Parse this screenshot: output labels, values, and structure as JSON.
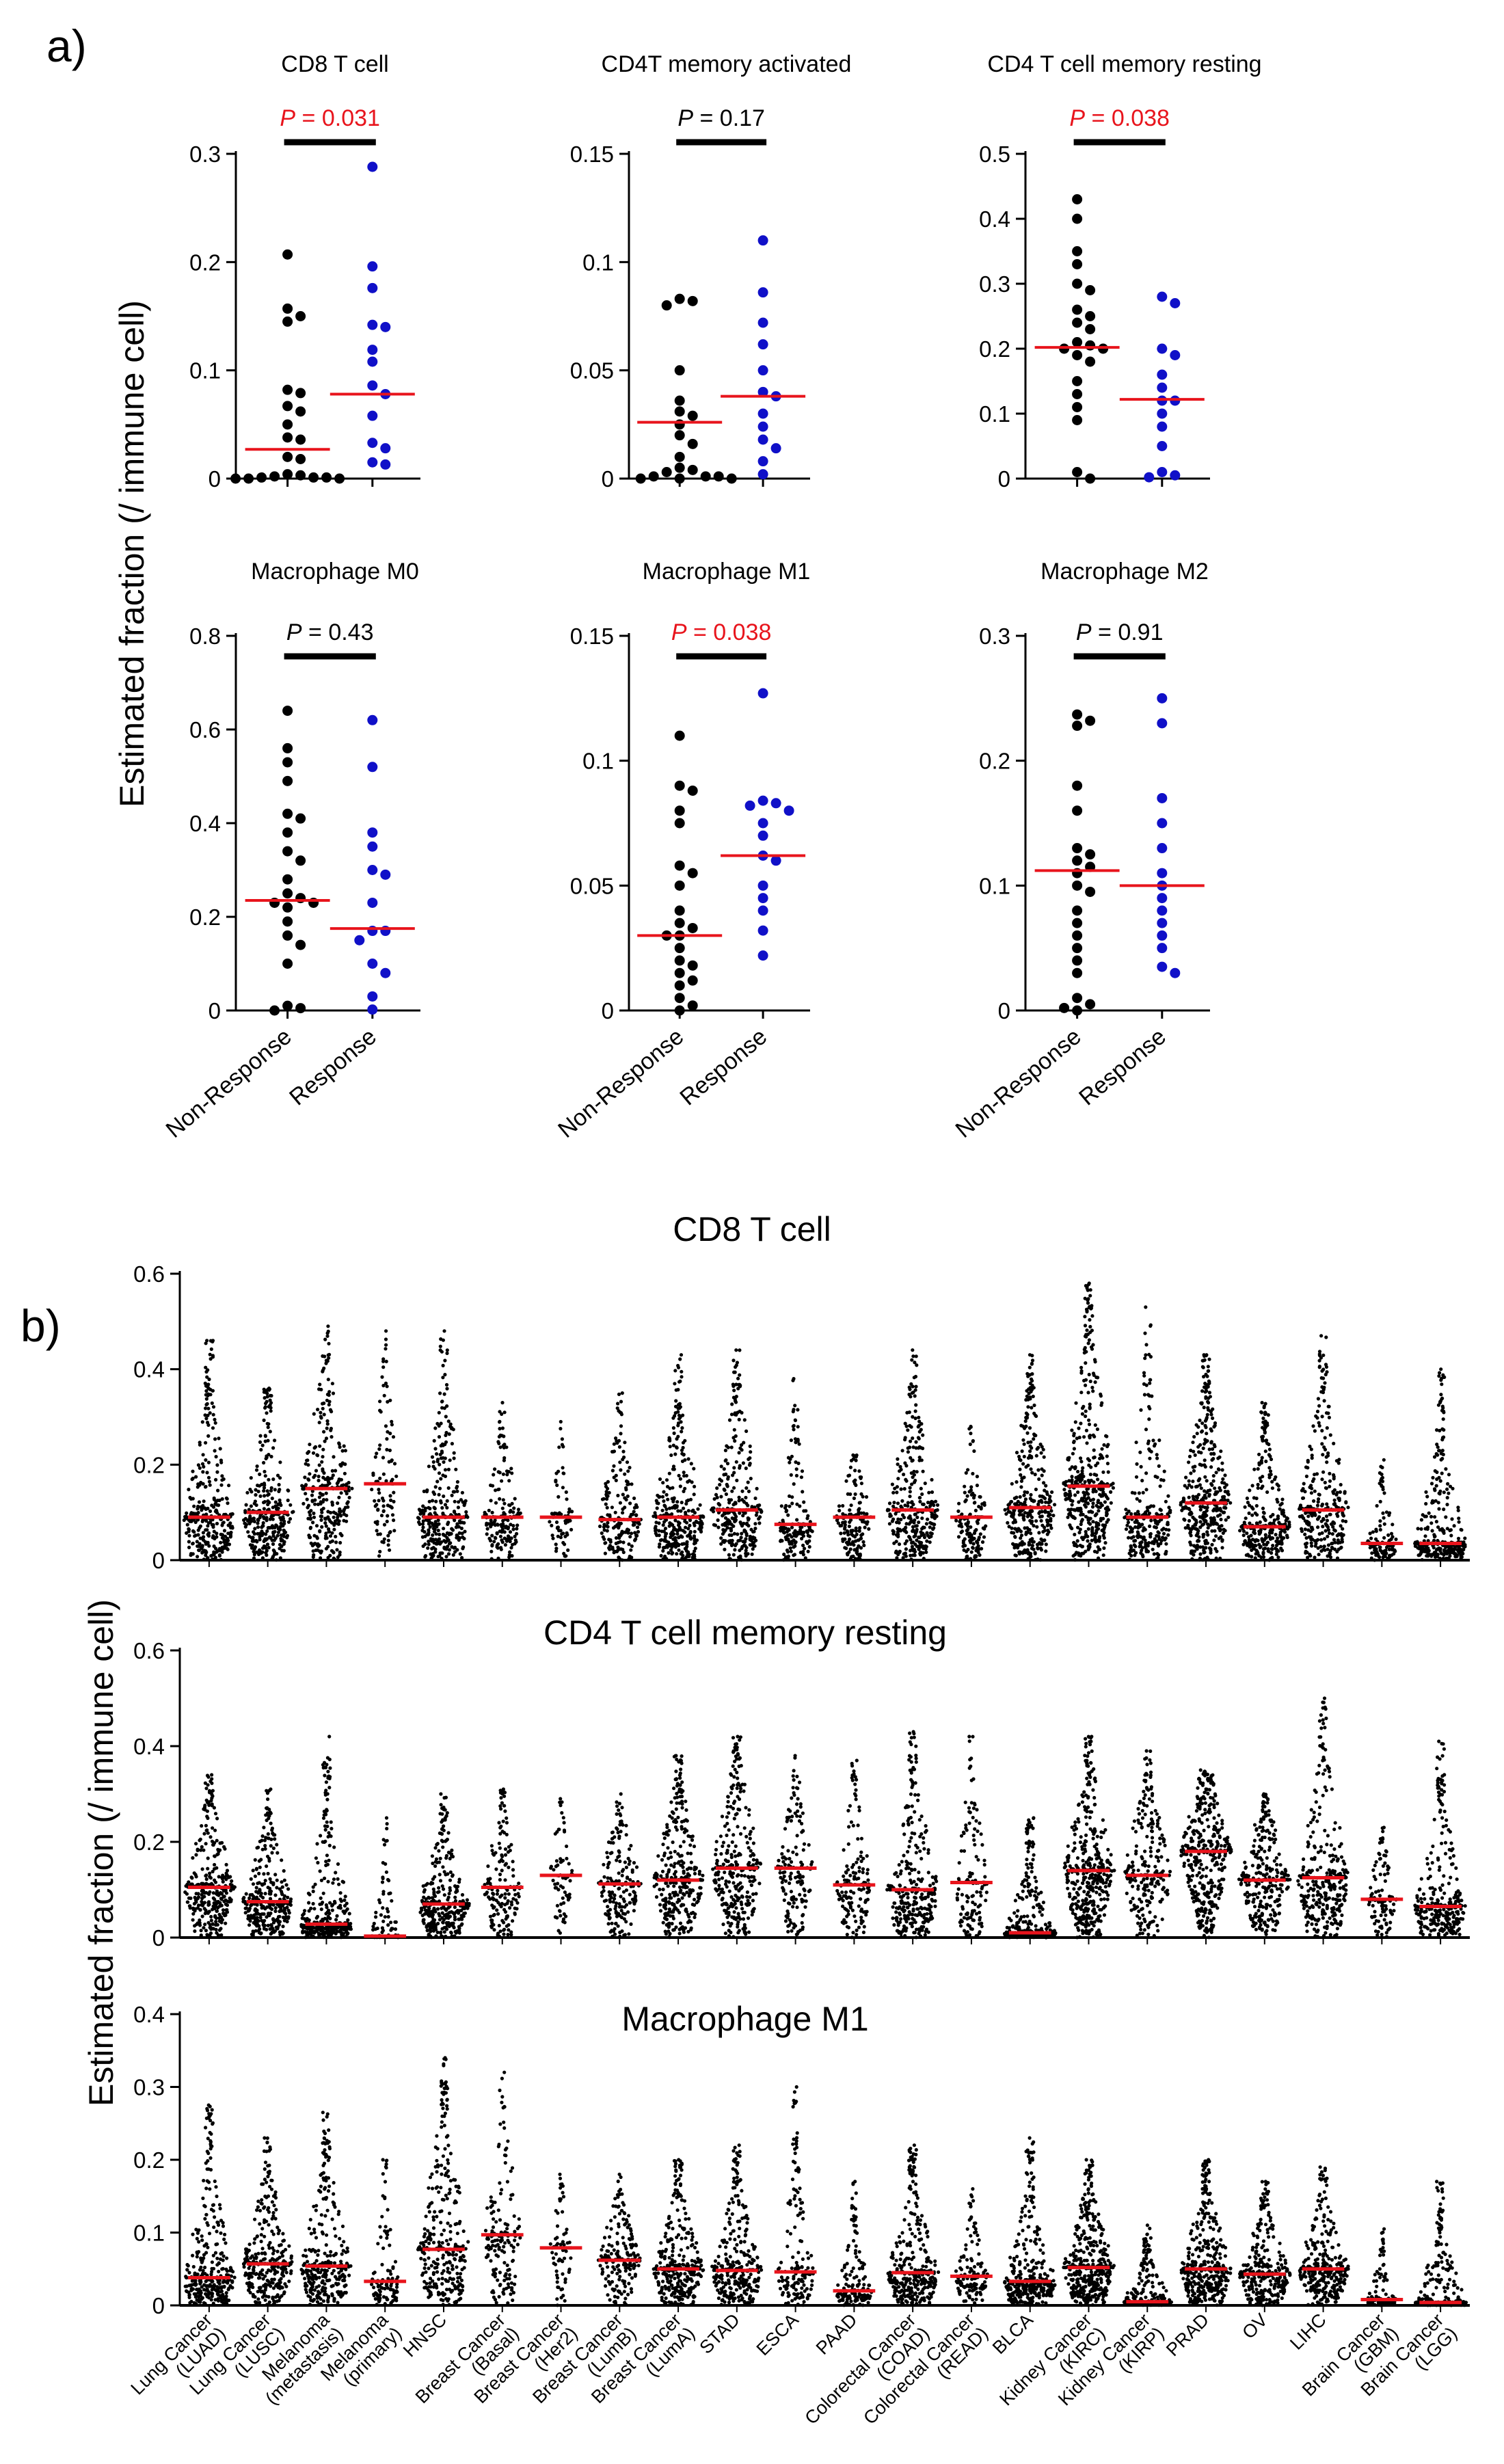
{
  "panel_a": {
    "label": "a)",
    "ylabel": "Estimated fraction (/ immune cell)",
    "group_labels": [
      "Non-Response",
      "Response"
    ],
    "colors": {
      "non_response": "#000000",
      "response": "#1010c8",
      "median": "#e8141c",
      "significant": "#e8141c",
      "not_significant": "#000000"
    }
  },
  "panel_b": {
    "label": "b)",
    "ylabel": "Estimated fraction (/ immune cell)",
    "categories": [
      [
        "Lung Cancer",
        "(LUAD)"
      ],
      [
        "Lung Cancer",
        "(LUSC)"
      ],
      [
        "Melanoma",
        "(metastasis)"
      ],
      [
        "Melanoma",
        "(primary)"
      ],
      [
        "HNSC"
      ],
      [
        "Breast Cancer",
        "(Basal)"
      ],
      [
        "Breast Cancer",
        "(Her2)"
      ],
      [
        "Breast Cancer",
        "(LumB)"
      ],
      [
        "Breast Cancer",
        "(LumA)"
      ],
      [
        "STAD"
      ],
      [
        "ESCA"
      ],
      [
        "PAAD"
      ],
      [
        "Colorectal Cancer",
        "(COAD)"
      ],
      [
        "Colorectal Cancer",
        "(READ)"
      ],
      [
        "BLCA"
      ],
      [
        "Kidney Cancer",
        "(KIRC)"
      ],
      [
        "Kidney Cancer",
        "(KIRP)"
      ],
      [
        "PRAD"
      ],
      [
        "OV"
      ],
      [
        "LIHC"
      ],
      [
        "Brain Cancer",
        "(GBM)"
      ],
      [
        "Brain Cancer",
        "(LGG)"
      ]
    ],
    "colors": {
      "dots": "#000000",
      "median": "#e8141c"
    }
  },
  "chart_data": [
    {
      "type": "scatter",
      "title": "CD8 T cell",
      "ylim": [
        0,
        0.3
      ],
      "yticks": [
        0,
        0.1,
        0.2,
        0.3
      ],
      "ytick_labels": [
        "0",
        "0.1",
        "0.2",
        "0.3"
      ],
      "groups": [
        "Non-Response",
        "Response"
      ],
      "non_response": [
        0.207,
        0.157,
        0.15,
        0.145,
        0.082,
        0.079,
        0.067,
        0.062,
        0.05,
        0.038,
        0.036,
        0.02,
        0.018,
        0.004,
        0.003,
        0.002,
        0.001,
        0.001,
        0.001,
        0,
        0,
        0
      ],
      "response": [
        0.288,
        0.196,
        0.176,
        0.142,
        0.14,
        0.119,
        0.108,
        0.086,
        0.078,
        0.058,
        0.033,
        0.028,
        0.015,
        0.013
      ],
      "medians": [
        0.027,
        0.078
      ],
      "p_label": "P",
      "p_value": "= 0.031",
      "significant": true
    },
    {
      "type": "scatter",
      "title": "CD4T memory activated",
      "ylim": [
        0,
        0.15
      ],
      "yticks": [
        0,
        0.05,
        0.1,
        0.15
      ],
      "ytick_labels": [
        "0",
        "0.05",
        "0.1",
        "0.15"
      ],
      "groups": [
        "Non-Response",
        "Response"
      ],
      "non_response": [
        0.083,
        0.082,
        0.08,
        0.05,
        0.036,
        0.031,
        0.029,
        0.025,
        0.02,
        0.016,
        0.01,
        0.005,
        0.004,
        0.003,
        0.001,
        0.001,
        0.001,
        0,
        0,
        0
      ],
      "response": [
        0.11,
        0.086,
        0.072,
        0.062,
        0.05,
        0.04,
        0.038,
        0.03,
        0.024,
        0.018,
        0.014,
        0.008,
        0.002
      ],
      "medians": [
        0.026,
        0.038
      ],
      "p_label": "P",
      "p_value": "= 0.17",
      "significant": false
    },
    {
      "type": "scatter",
      "title": "CD4 T cell memory resting",
      "ylim": [
        0,
        0.5
      ],
      "yticks": [
        0,
        0.1,
        0.2,
        0.3,
        0.4,
        0.5
      ],
      "ytick_labels": [
        "0",
        "0.1",
        "0.2",
        "0.3",
        "0.4",
        "0.5"
      ],
      "groups": [
        "Non-Response",
        "Response"
      ],
      "non_response": [
        0.43,
        0.4,
        0.35,
        0.33,
        0.3,
        0.29,
        0.26,
        0.25,
        0.24,
        0.23,
        0.21,
        0.205,
        0.2,
        0.2,
        0.19,
        0.18,
        0.15,
        0.13,
        0.11,
        0.09,
        0.01,
        0
      ],
      "response": [
        0.28,
        0.27,
        0.2,
        0.19,
        0.16,
        0.14,
        0.12,
        0.12,
        0.1,
        0.08,
        0.05,
        0.01,
        0.005,
        0.002
      ],
      "medians": [
        0.202,
        0.122
      ],
      "p_label": "P",
      "p_value": "= 0.038",
      "significant": true
    },
    {
      "type": "scatter",
      "title": "Macrophage M0",
      "ylim": [
        0,
        0.8
      ],
      "yticks": [
        0,
        0.2,
        0.4,
        0.6,
        0.8
      ],
      "ytick_labels": [
        "0",
        "0.2",
        "0.4",
        "0.6",
        "0.8"
      ],
      "groups": [
        "Non-Response",
        "Response"
      ],
      "non_response": [
        0.64,
        0.56,
        0.53,
        0.49,
        0.42,
        0.41,
        0.38,
        0.34,
        0.32,
        0.28,
        0.25,
        0.24,
        0.23,
        0.23,
        0.22,
        0.19,
        0.16,
        0.14,
        0.1,
        0.01,
        0.005,
        0
      ],
      "response": [
        0.62,
        0.52,
        0.38,
        0.35,
        0.3,
        0.29,
        0.23,
        0.17,
        0.17,
        0.15,
        0.1,
        0.08,
        0.03,
        0.002
      ],
      "medians": [
        0.235,
        0.175
      ],
      "p_label": "P",
      "p_value": "= 0.43",
      "significant": false
    },
    {
      "type": "scatter",
      "title": "Macrophage M1",
      "ylim": [
        0,
        0.15
      ],
      "yticks": [
        0,
        0.05,
        0.1,
        0.15
      ],
      "ytick_labels": [
        "0",
        "0.05",
        "0.1",
        "0.15"
      ],
      "groups": [
        "Non-Response",
        "Response"
      ],
      "non_response": [
        0.11,
        0.09,
        0.088,
        0.08,
        0.075,
        0.058,
        0.055,
        0.05,
        0.04,
        0.035,
        0.033,
        0.03,
        0.03,
        0.025,
        0.02,
        0.018,
        0.015,
        0.012,
        0.01,
        0.005,
        0.002,
        0
      ],
      "response": [
        0.127,
        0.084,
        0.083,
        0.082,
        0.08,
        0.075,
        0.07,
        0.062,
        0.06,
        0.05,
        0.045,
        0.04,
        0.032,
        0.022
      ],
      "medians": [
        0.03,
        0.062
      ],
      "p_label": "P",
      "p_value": "= 0.038",
      "significant": true
    },
    {
      "type": "scatter",
      "title": "Macrophage M2",
      "ylim": [
        0,
        0.3
      ],
      "yticks": [
        0,
        0.1,
        0.2,
        0.3
      ],
      "ytick_labels": [
        "0",
        "0.1",
        "0.2",
        "0.3"
      ],
      "groups": [
        "Non-Response",
        "Response"
      ],
      "non_response": [
        0.237,
        0.232,
        0.228,
        0.18,
        0.16,
        0.13,
        0.125,
        0.12,
        0.115,
        0.11,
        0.1,
        0.095,
        0.08,
        0.07,
        0.06,
        0.05,
        0.04,
        0.03,
        0.01,
        0.005,
        0.002,
        0
      ],
      "response": [
        0.25,
        0.23,
        0.17,
        0.15,
        0.13,
        0.11,
        0.1,
        0.09,
        0.08,
        0.07,
        0.06,
        0.05,
        0.035,
        0.03
      ],
      "medians": [
        0.112,
        0.1
      ],
      "p_label": "P",
      "p_value": "= 0.91",
      "significant": false
    },
    {
      "type": "scatter",
      "title": "CD8 T cell",
      "ylim": [
        0,
        0.6
      ],
      "yticks": [
        0,
        0.2,
        0.4,
        0.6
      ],
      "ytick_labels": [
        "0",
        "0.2",
        "0.4",
        "0.6"
      ],
      "medians": [
        0.09,
        0.1,
        0.15,
        0.16,
        0.09,
        0.09,
        0.09,
        0.085,
        0.09,
        0.105,
        0.075,
        0.09,
        0.105,
        0.09,
        0.11,
        0.155,
        0.09,
        0.12,
        0.07,
        0.105,
        0.035,
        0.035
      ],
      "maxima": [
        0.46,
        0.36,
        0.49,
        0.48,
        0.48,
        0.33,
        0.29,
        0.35,
        0.43,
        0.44,
        0.38,
        0.22,
        0.44,
        0.28,
        0.43,
        0.58,
        0.53,
        0.43,
        0.33,
        0.47,
        0.21,
        0.4
      ],
      "sample_counts": [
        320,
        300,
        300,
        100,
        310,
        160,
        70,
        190,
        320,
        300,
        150,
        150,
        300,
        130,
        320,
        400,
        230,
        380,
        280,
        300,
        110,
        280
      ]
    },
    {
      "type": "scatter",
      "title": "CD4 T cell memory resting",
      "ylim": [
        0,
        0.6
      ],
      "yticks": [
        0,
        0.2,
        0.4,
        0.6
      ],
      "ytick_labels": [
        "0",
        "0.2",
        "0.4",
        "0.6"
      ],
      "medians": [
        0.105,
        0.075,
        0.028,
        0.003,
        0.07,
        0.105,
        0.13,
        0.112,
        0.12,
        0.145,
        0.145,
        0.11,
        0.1,
        0.115,
        0.01,
        0.14,
        0.13,
        0.18,
        0.12,
        0.125,
        0.08,
        0.065
      ],
      "maxima": [
        0.34,
        0.31,
        0.42,
        0.25,
        0.3,
        0.31,
        0.29,
        0.3,
        0.38,
        0.42,
        0.38,
        0.37,
        0.43,
        0.42,
        0.25,
        0.42,
        0.39,
        0.35,
        0.3,
        0.5,
        0.23,
        0.41
      ],
      "sample_counts": [
        320,
        300,
        300,
        100,
        310,
        160,
        70,
        190,
        320,
        300,
        150,
        150,
        300,
        130,
        320,
        400,
        230,
        380,
        280,
        300,
        110,
        280
      ]
    },
    {
      "type": "scatter",
      "title": "Macrophage M1",
      "ylim": [
        0,
        0.4
      ],
      "yticks": [
        0,
        0.1,
        0.2,
        0.3,
        0.4
      ],
      "ytick_labels": [
        "0",
        "0.1",
        "0.2",
        "0.3",
        "0.4"
      ],
      "medians": [
        0.038,
        0.057,
        0.054,
        0.033,
        0.077,
        0.097,
        0.079,
        0.062,
        0.05,
        0.048,
        0.046,
        0.02,
        0.045,
        0.04,
        0.033,
        0.052,
        0.005,
        0.05,
        0.043,
        0.05,
        0.008,
        0.004
      ],
      "maxima": [
        0.275,
        0.23,
        0.265,
        0.2,
        0.34,
        0.32,
        0.18,
        0.18,
        0.2,
        0.22,
        0.3,
        0.17,
        0.22,
        0.16,
        0.23,
        0.2,
        0.11,
        0.2,
        0.17,
        0.19,
        0.105,
        0.17
      ],
      "sample_counts": [
        320,
        300,
        300,
        100,
        310,
        160,
        70,
        190,
        320,
        300,
        150,
        150,
        300,
        130,
        320,
        400,
        230,
        380,
        280,
        300,
        110,
        280
      ]
    }
  ]
}
